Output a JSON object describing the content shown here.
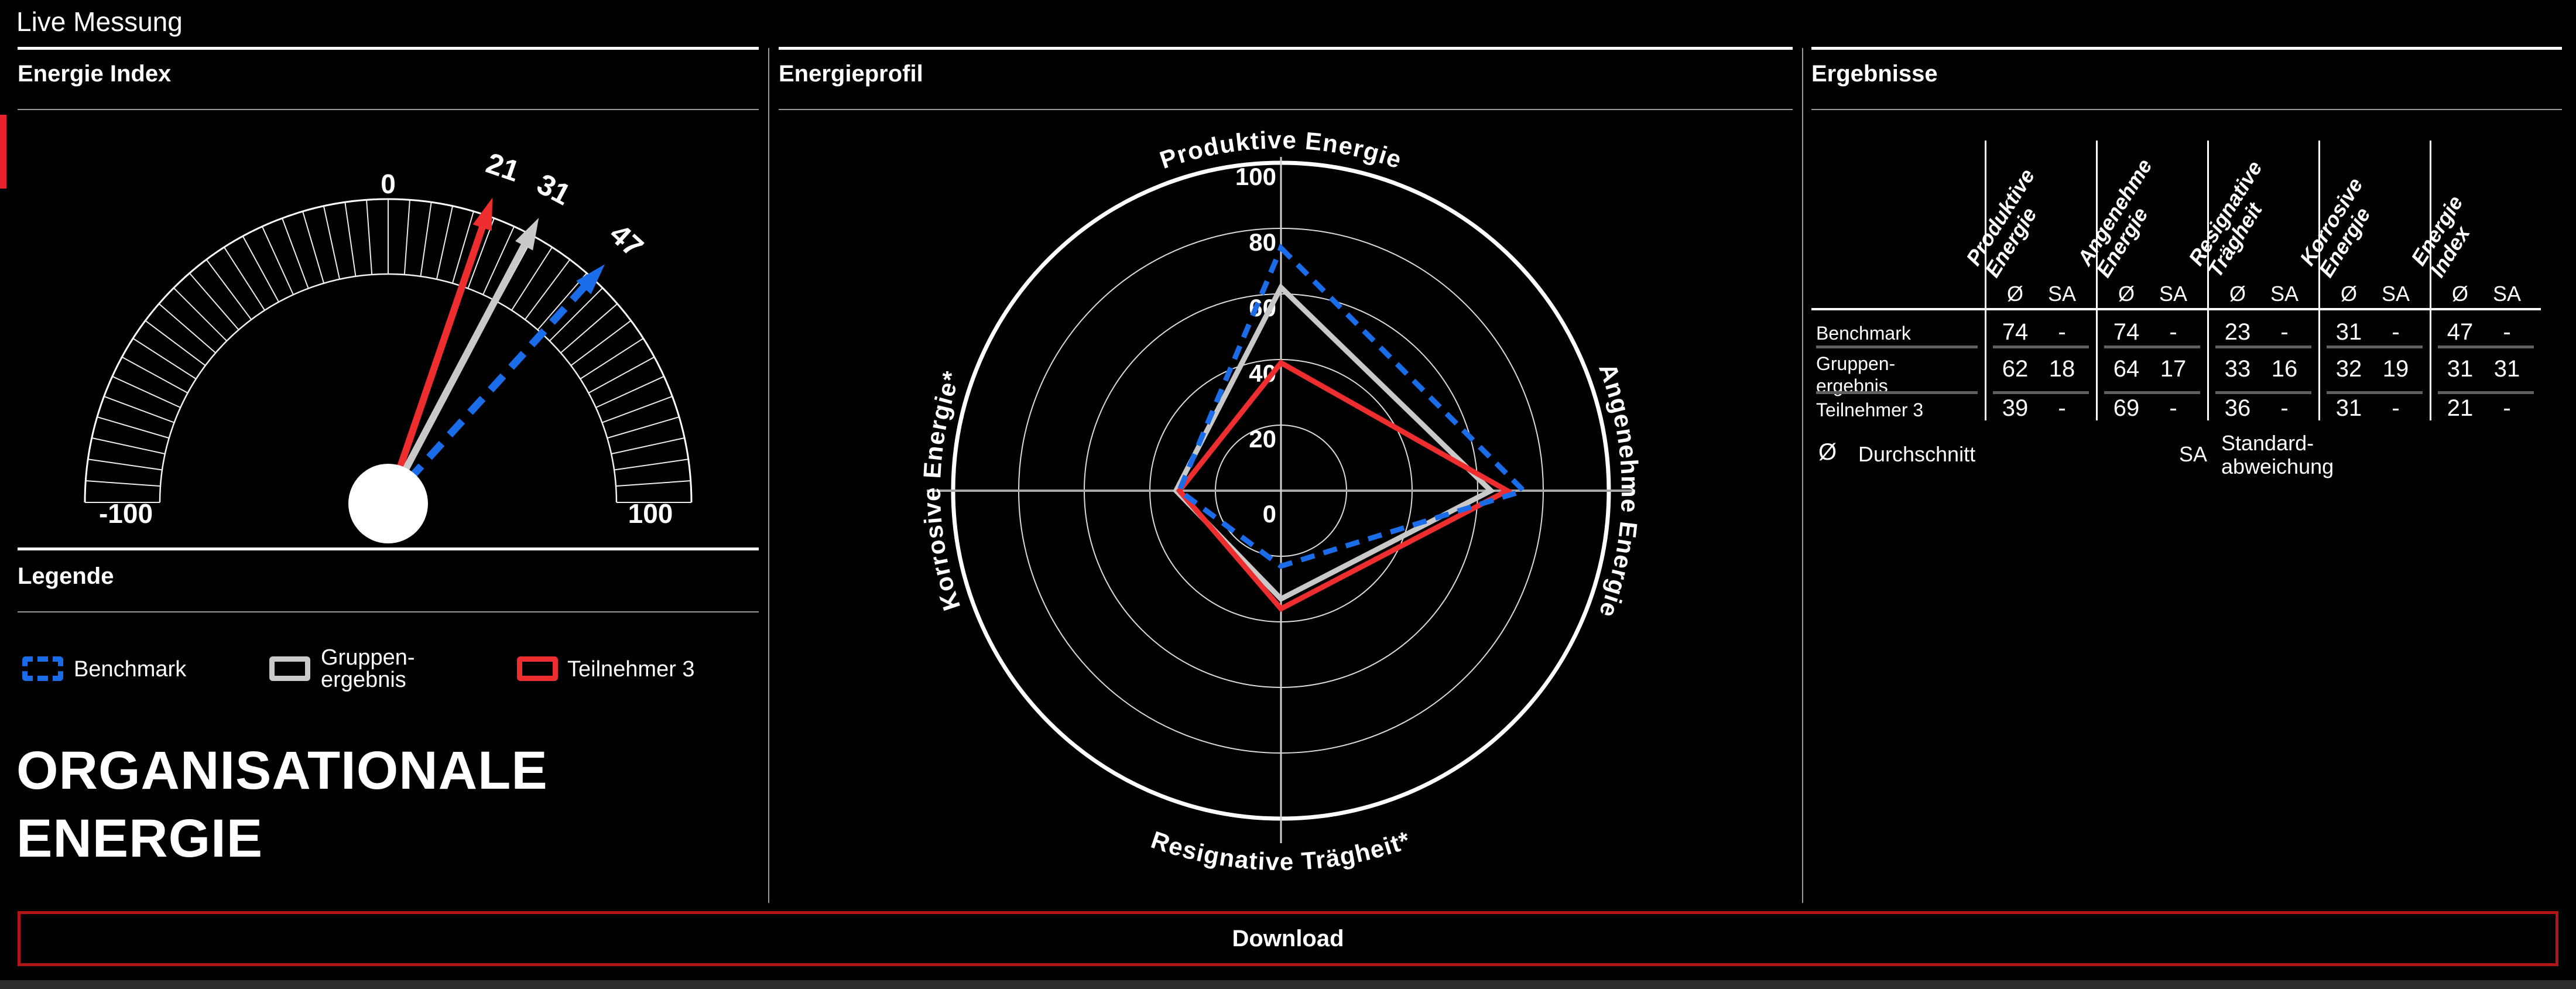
{
  "window": {
    "title": "Live Messung"
  },
  "colors": {
    "background": "#000000",
    "panel_border": "#ffffff",
    "divider": "#9b9b9b",
    "accent_red_bar": "#e8232e",
    "benchmark_blue": "#1a6ce8",
    "group_gray": "#c9c9c9",
    "participant_red": "#ee2e2e",
    "download_border": "#b31616"
  },
  "panels": {
    "energie_index": {
      "title": "Energie Index"
    },
    "energieprofil": {
      "title": "Energieprofil"
    },
    "ergebnisse": {
      "title": "Ergebnisse"
    }
  },
  "legende": {
    "title": "Legende",
    "items": [
      {
        "label": "Benchmark",
        "color": "#1a6ce8",
        "style": "dashed"
      },
      {
        "label": "Gruppen-\nergebnis",
        "color": "#c9c9c9",
        "style": "solid"
      },
      {
        "label": "Teilnehmer 3",
        "color": "#ee2e2e",
        "style": "solid"
      }
    ]
  },
  "headline": {
    "line1": "ORGANISATIONALE",
    "line2": "ENERGIE"
  },
  "download_button": {
    "label": "Download"
  },
  "chart_data": [
    {
      "type": "gauge",
      "title": "Energie Index",
      "min": -100,
      "max": 100,
      "axis_labels": {
        "min": "-100",
        "mid": "0",
        "max": "100"
      },
      "series": [
        {
          "name": "Teilnehmer 3",
          "value": 21,
          "color": "#ee2e2e",
          "style": "solid"
        },
        {
          "name": "Gruppen-ergebnis",
          "value": 31,
          "color": "#c9c9c9",
          "style": "solid"
        },
        {
          "name": "Benchmark",
          "value": 47,
          "color": "#1a6ce8",
          "style": "dashed"
        }
      ]
    },
    {
      "type": "radar",
      "title": "Energieprofil",
      "axes": [
        "Produktive Energie",
        "Angenehme Energie",
        "Resignative Trägheit*",
        "Korrosive Energie*"
      ],
      "scale": {
        "min": 0,
        "max": 100,
        "ring_step": 20,
        "ring_labels": [
          "0",
          "20",
          "40",
          "60",
          "80",
          "100"
        ]
      },
      "series": [
        {
          "name": "Gruppen-ergebnis",
          "color": "#c9c9c9",
          "style": "solid",
          "values": [
            62,
            64,
            33,
            32
          ]
        },
        {
          "name": "Teilnehmer 3",
          "color": "#ee2e2e",
          "style": "solid",
          "values": [
            39,
            69,
            36,
            31
          ]
        },
        {
          "name": "Benchmark",
          "color": "#1a6ce8",
          "style": "dashed",
          "values": [
            74,
            74,
            23,
            31
          ]
        }
      ]
    },
    {
      "type": "table",
      "title": "Ergebnisse",
      "column_groups": [
        "Produktive\nEnergie",
        "Angenehme\nEnergie",
        "Resignative\nTrägheit",
        "Korrosive\nEnergie",
        "Energie\nIndex"
      ],
      "sub_columns": [
        "Ø",
        "SA"
      ],
      "rows": [
        {
          "label": "Benchmark",
          "values": [
            [
              "74",
              "-"
            ],
            [
              "74",
              "-"
            ],
            [
              "23",
              "-"
            ],
            [
              "31",
              "-"
            ],
            [
              "47",
              "-"
            ]
          ]
        },
        {
          "label": "Gruppen-\nergebnis",
          "values": [
            [
              "62",
              "18"
            ],
            [
              "64",
              "17"
            ],
            [
              "33",
              "16"
            ],
            [
              "32",
              "19"
            ],
            [
              "31",
              "31"
            ]
          ]
        },
        {
          "label": "Teilnehmer 3",
          "values": [
            [
              "39",
              "-"
            ],
            [
              "69",
              "-"
            ],
            [
              "36",
              "-"
            ],
            [
              "31",
              "-"
            ],
            [
              "21",
              "-"
            ]
          ]
        }
      ],
      "legend": [
        {
          "symbol": "Ø",
          "label": "Durchschnitt"
        },
        {
          "symbol": "SA",
          "label": "Standard-\nabweichung"
        }
      ]
    }
  ]
}
